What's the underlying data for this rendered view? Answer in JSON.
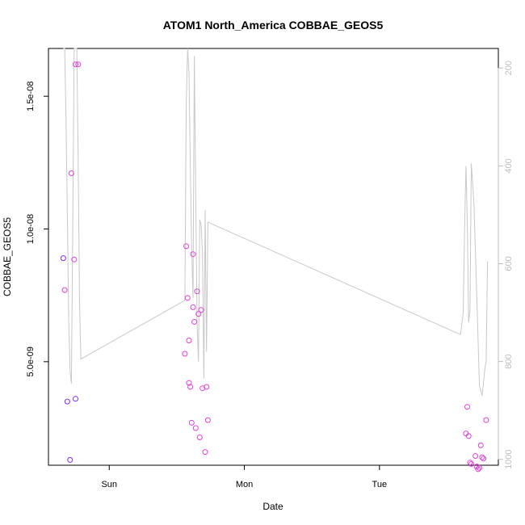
{
  "chart_data": {
    "type": "scatter",
    "title": "ATOM1 North_America COBBAE_GEOS5",
    "xlabel": "Date",
    "ylabel": "COBBAE_GEOS5",
    "x_ticks": [
      "Sun",
      "Mon",
      "Tue"
    ],
    "y_ticks": [
      {
        "value": 5e-09,
        "label": "5.0e-09"
      },
      {
        "value": 1e-08,
        "label": "1.0e-08"
      },
      {
        "value": 1.5e-08,
        "label": "1.5e-08"
      }
    ],
    "y_right_ticks": [
      {
        "value": 200,
        "label": "200"
      },
      {
        "value": 400,
        "label": "400"
      },
      {
        "value": 600,
        "label": "600"
      },
      {
        "value": 800,
        "label": "800"
      },
      {
        "value": 1000,
        "label": "1000"
      }
    ],
    "xlim_days": [
      -0.45,
      2.88
    ],
    "ylim": [
      1.1e-09,
      1.68e-08
    ],
    "y_right_lim": [
      1012,
      160
    ],
    "y_right_inverted": true,
    "grid": false,
    "colors": {
      "point_low": "#7b2cf0",
      "point_high": "#e040d8",
      "line": "#c8c8c8"
    },
    "series": [
      {
        "kind": "points",
        "x_days": [
          -0.34,
          -0.33,
          -0.31,
          -0.29,
          -0.28,
          -0.26,
          -0.25,
          -0.25,
          -0.23,
          0.56,
          0.57,
          0.58,
          0.59,
          0.59,
          0.6,
          0.61,
          0.62,
          0.62,
          0.63,
          0.64,
          0.65,
          0.66,
          0.67,
          0.68,
          0.69,
          0.71,
          0.72,
          0.73,
          2.64,
          2.65,
          2.66,
          2.67,
          2.68,
          2.71,
          2.72,
          2.73,
          2.74,
          2.75,
          2.76,
          2.77,
          2.79
        ],
        "y": [
          8.9e-09,
          7.7e-09,
          3.5e-09,
          1.3e-09,
          1.21e-08,
          8.85e-09,
          1.62e-08,
          3.6e-09,
          1.62e-08,
          5.3e-09,
          9.35e-09,
          7.4e-09,
          5.8e-09,
          4.2e-09,
          4.05e-09,
          2.7e-09,
          7.05e-09,
          9.05e-09,
          6.5e-09,
          2.5e-09,
          7.65e-09,
          6.8e-09,
          2.15e-09,
          6.95e-09,
          4e-09,
          1.6e-09,
          4.05e-09,
          2.8e-09,
          2.3e-09,
          3.3e-09,
          2.2e-09,
          1.2e-09,
          1.15e-09,
          1.45e-09,
          1.05e-09,
          9.5e-10,
          1e-09,
          1.85e-09,
          1.4e-09,
          1.35e-09,
          2.8e-09
        ],
        "pressure": [
          940,
          920,
          960,
          990,
          915,
          925,
          905,
          935,
          895,
          880,
          890,
          910,
          860,
          870,
          865,
          840,
          875,
          885,
          830,
          820,
          845,
          855,
          805,
          850,
          815,
          800,
          810,
          790,
          800,
          815,
          780,
          770,
          760,
          790,
          775,
          765,
          770,
          785,
          780,
          775,
          795
        ]
      },
      {
        "kind": "line",
        "x_days": [
          -0.34,
          -0.33,
          -0.32,
          -0.31,
          -0.3,
          -0.29,
          -0.28,
          -0.27,
          -0.26,
          -0.25,
          -0.24,
          -0.23,
          -0.22,
          -0.21,
          0.56,
          0.57,
          0.58,
          0.59,
          0.6,
          0.61,
          0.62,
          0.63,
          0.64,
          0.65,
          0.66,
          0.67,
          0.68,
          0.69,
          0.7,
          0.71,
          0.72,
          0.73,
          2.6,
          2.62,
          2.63,
          2.64,
          2.65,
          2.66,
          2.67,
          2.68,
          2.7,
          2.72,
          2.74,
          2.76,
          2.78,
          2.79,
          2.8
        ],
        "y_right": [
          150,
          150,
          300,
          500,
          720,
          820,
          845,
          520,
          150,
          150,
          150,
          390,
          680,
          795,
          675,
          270,
          150,
          210,
          400,
          570,
          670,
          175,
          450,
          720,
          800,
          510,
          520,
          580,
          835,
          490,
          780,
          515,
          745,
          700,
          530,
          400,
          510,
          720,
          695,
          395,
          480,
          660,
          850,
          870,
          815,
          800,
          595
        ]
      }
    ]
  }
}
